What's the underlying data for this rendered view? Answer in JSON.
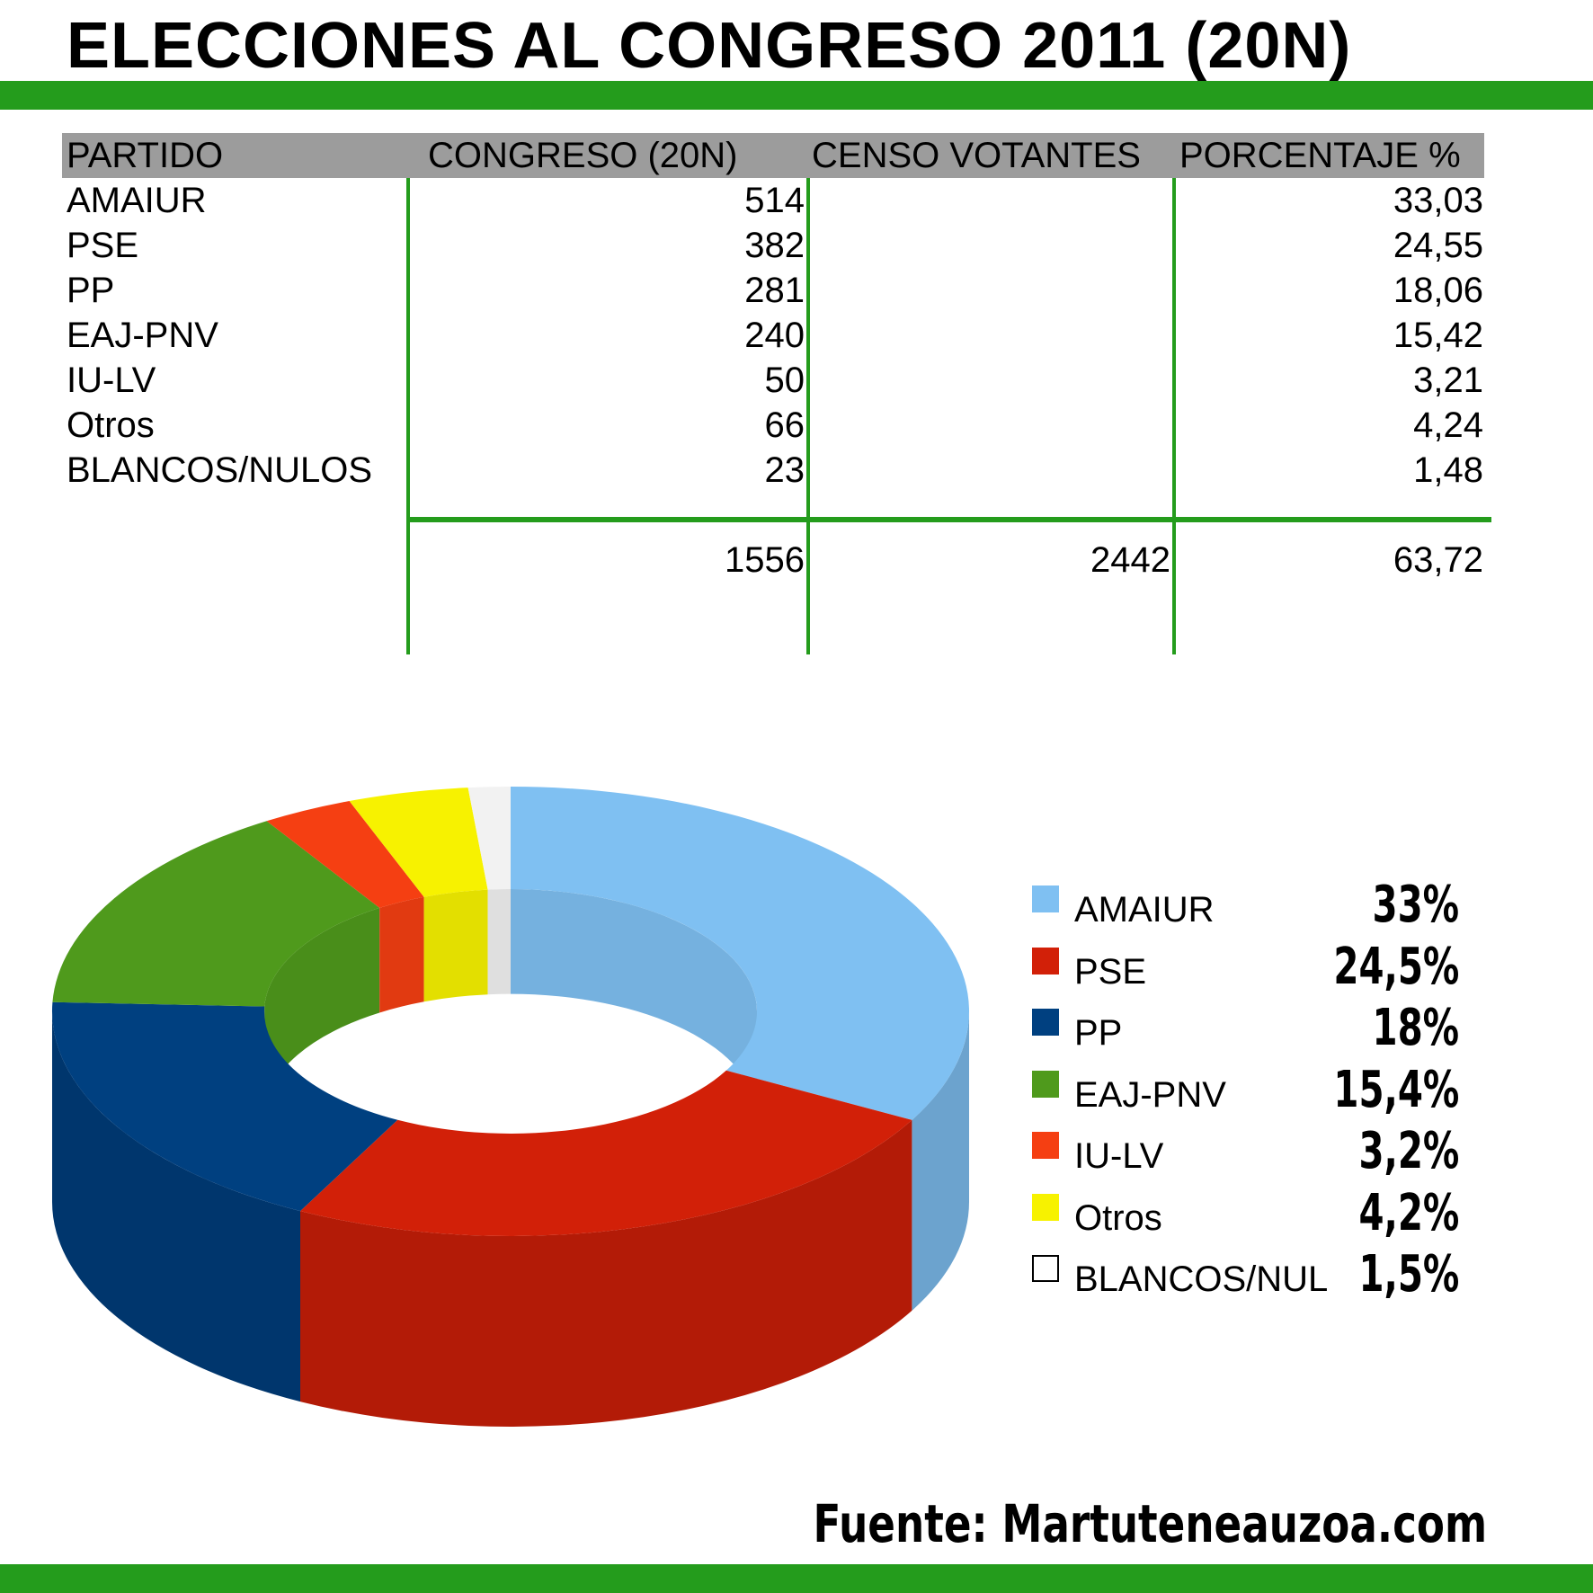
{
  "title": "ELECCIONES AL CONGRESO 2011 (20N)",
  "table": {
    "headers": [
      "PARTIDO",
      "CONGRESO (20N)",
      "CENSO VOTANTES",
      "PORCENTAJE %"
    ],
    "rows": [
      {
        "party": "AMAIUR",
        "votes": "514",
        "pct": "33,03"
      },
      {
        "party": "PSE",
        "votes": "382",
        "pct": "24,55"
      },
      {
        "party": "PP",
        "votes": "281",
        "pct": "18,06"
      },
      {
        "party": "EAJ-PNV",
        "votes": "240",
        "pct": "15,42"
      },
      {
        "party": "IU-LV",
        "votes": "50",
        "pct": "3,21"
      },
      {
        "party": "Otros",
        "votes": "66",
        "pct": "4,24"
      },
      {
        "party": "BLANCOS/NULOS",
        "votes": "23",
        "pct": "1,48"
      }
    ],
    "totals": {
      "votes": "1556",
      "census": "2442",
      "pct": "63,72"
    }
  },
  "chart_data": {
    "type": "pie",
    "style": "3d-donut",
    "categories": [
      "AMAIUR",
      "PSE",
      "PP",
      "EAJ-PNV",
      "IU-LV",
      "Otros",
      "BLANCOS/NUL"
    ],
    "values": [
      33.03,
      24.55,
      18.06,
      15.42,
      3.21,
      4.24,
      1.48
    ],
    "labels": [
      "33%",
      "24,5%",
      "18%",
      "15,4%",
      "3,2%",
      "4,2%",
      "1,5%"
    ],
    "colors": [
      "#7fc0f2",
      "#d22008",
      "#004080",
      "#4f9a1c",
      "#f53f12",
      "#f7f200",
      "#f2f2f2"
    ],
    "legend_position": "right"
  },
  "source": "Fuente: Martuteneauzoa.com"
}
